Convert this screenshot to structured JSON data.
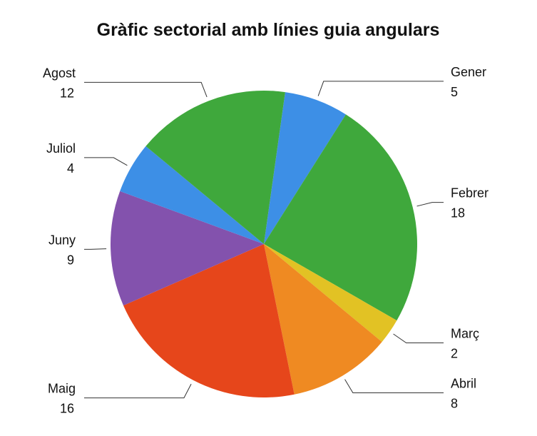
{
  "chart_data": {
    "type": "pie",
    "title": "Gràfic sectorial amb línies guia angulars",
    "categories": [
      "Gener",
      "Febrer",
      "Març",
      "Abril",
      "Maig",
      "Juny",
      "Juliol",
      "Agost"
    ],
    "values": [
      5,
      18,
      2,
      8,
      16,
      9,
      4,
      12
    ],
    "colors": [
      "#3d8fe6",
      "#3fa83c",
      "#e2c224",
      "#ef8a22",
      "#e6461b",
      "#8352ad",
      "#3d8fe6",
      "#3fa83c"
    ]
  }
}
